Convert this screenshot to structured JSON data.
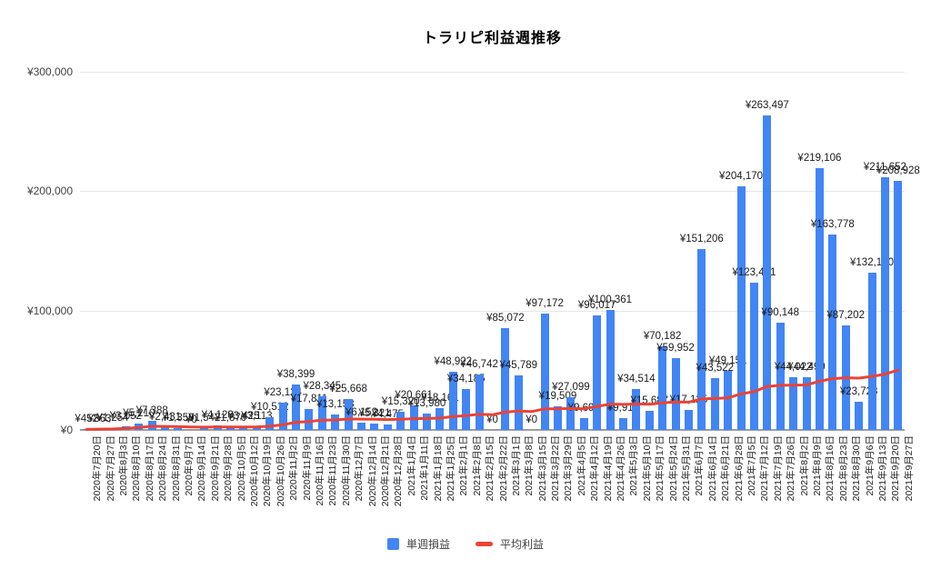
{
  "title": "トラリピ利益週推移",
  "legend": {
    "items": [
      {
        "label": "単週損益",
        "swatch": "square",
        "color": "#4285f4"
      },
      {
        "label": "平均利益",
        "swatch": "dash",
        "color": "#ea4335"
      }
    ]
  },
  "chart_data": {
    "type": "bar",
    "title": "トラリピ利益週推移",
    "currency_prefix": "¥",
    "ylim": [
      0,
      300000
    ],
    "y_ticks": [
      {
        "value": 0,
        "label": "¥0"
      },
      {
        "value": 100000,
        "label": "¥100,000"
      },
      {
        "value": 200000,
        "label": "¥200,000"
      },
      {
        "value": 300000,
        "label": "¥300,000"
      }
    ],
    "grid": true,
    "legend_position": "bottom",
    "value_labels_shown": true,
    "categories": [
      "2020年7月20日",
      "2020年7月27日",
      "2020年8月3日",
      "2020年8月10日",
      "2020年8月17日",
      "2020年8月24日",
      "2020年8月31日",
      "2020年9月7日",
      "2020年9月14日",
      "2020年9月21日",
      "2020年9月28日",
      "2020年10月5日",
      "2020年10月12日",
      "2020年10月19日",
      "2020年10月26日",
      "2020年11月2日",
      "2020年11月9日",
      "2020年11月16日",
      "2020年11月23日",
      "2020年11月30日",
      "2020年12月7日",
      "2020年12月14日",
      "2020年12月21日",
      "2020年12月28日",
      "2021年1月4日",
      "2021年1月11日",
      "2021年1月18日",
      "2021年1月25日",
      "2021年2月1日",
      "2021年2月8日",
      "2021年2月15日",
      "2021年2月22日",
      "2021年3月1日",
      "2021年3月8日",
      "2021年3月15日",
      "2021年3月22日",
      "2021年3月29日",
      "2021年4月5日",
      "2021年4月12日",
      "2021年4月19日",
      "2021年4月26日",
      "2021年5月3日",
      "2021年5月10日",
      "2021年5月17日",
      "2021年5月24日",
      "2021年5月31日",
      "2021年6月7日",
      "2021年6月14日",
      "2021年6月21日",
      "2021年6月28日",
      "2021年7月5日",
      "2021年7月12日",
      "2021年7月19日",
      "2021年7月26日",
      "2021年8月2日",
      "2021年8月9日",
      "2021年8月16日",
      "2021年8月23日",
      "2021年8月30日",
      "2021年9月6日",
      "2021年9月13日",
      "2021年9月20日",
      "2021年9月27日"
    ],
    "series": [
      {
        "name": "単週損益",
        "type": "bar",
        "color": "#4285f4",
        "values": [
          452,
          863,
          1254,
          3052,
          5210,
          7388,
          2431,
          1350,
          0,
          1542,
          4120,
          1870,
          3425,
          3113,
          10512,
          23124,
          38399,
          17811,
          28345,
          13158,
          25668,
          6152,
          5321,
          4475,
          15320,
          20661,
          13980,
          18161,
          48922,
          34185,
          46742,
          0,
          85072,
          45789,
          0,
          97172,
          19509,
          27099,
          9691,
          96017,
          100361,
          9918,
          34514,
          15687,
          70182,
          59952,
          17125,
          151206,
          43522,
          49151,
          204170,
          123471,
          263497,
          90148,
          44022,
          44499,
          219106,
          163778,
          87202,
          23723,
          132100,
          211652,
          208928
        ]
      },
      {
        "name": "平均利益",
        "type": "line",
        "color": "#ea4335",
        "note": "running average of 単週損益",
        "values": [
          452,
          658,
          856,
          1405,
          2166,
          3037,
          2950,
          2750,
          2444,
          2354,
          2515,
          2461,
          2535,
          2576,
          3105,
          4357,
          6359,
          6995,
          8119,
          8371,
          9195,
          9056,
          8894,
          8710,
          8974,
          9424,
          9592,
          9898,
          11244,
          12009,
          13129,
          12719,
          14911,
          15819,
          15368,
          17640,
          17691,
          17938,
          17727,
          19684,
          21651,
          21372,
          21678,
          21542,
          22623,
          23434,
          23300,
          25965,
          26323,
          26779,
          30258,
          32050,
          36417,
          37412,
          37532,
          37657,
          40840,
          42960,
          43709,
          43377,
          44831,
          46767,
          50083
        ]
      }
    ]
  },
  "layout_note": ""
}
